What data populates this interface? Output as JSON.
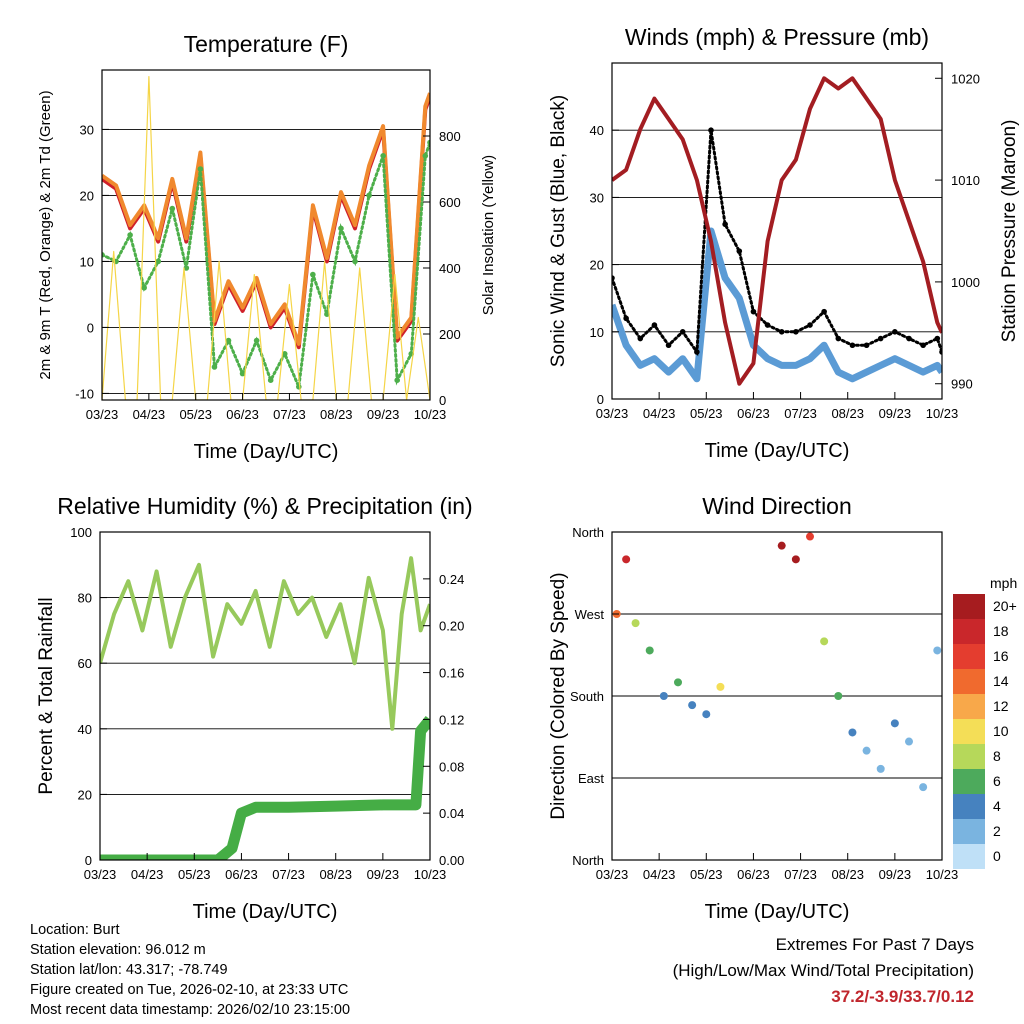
{
  "colors": {
    "temp2m": "#d0212a",
    "temp9m": "#f0892e",
    "dewpoint": "#4daf4a",
    "solar": "#f5d547",
    "wind": "#5b9bd5",
    "gust": "#000000",
    "pressure": "#a31d22",
    "rh": "#97c95c",
    "precip": "#45ad45",
    "extremes": "#c0262d"
  },
  "chart_data": [
    {
      "id": "temperature",
      "type": "line",
      "title": "Temperature (F)",
      "xlabel": "Time (Day/UTC)",
      "ylabel": "2m & 9m T (Red, Orange) & 2m Td (Green)",
      "y2label": "Solar Insolation (Yellow)",
      "xticks": [
        "03/23",
        "04/23",
        "05/23",
        "06/23",
        "07/23",
        "08/23",
        "09/23",
        "10/23"
      ],
      "ylim": [
        -11,
        39
      ],
      "yticks": [
        "-10",
        "0",
        "10",
        "20",
        "30"
      ],
      "y2lim": [
        0,
        1000
      ],
      "y2ticks": [
        "0",
        "200",
        "400",
        "600",
        "800"
      ],
      "gridlines": [
        -10,
        0,
        10,
        20,
        30
      ],
      "series": [
        {
          "name": "2m T",
          "kind": "line",
          "color": "#d0212a",
          "x": [
            0,
            0.3,
            0.6,
            0.9,
            1.2,
            1.5,
            1.8,
            2.1,
            2.4,
            2.7,
            3.0,
            3.3,
            3.6,
            3.9,
            4.2,
            4.5,
            4.8,
            5.1,
            5.4,
            5.7,
            6.0,
            6.3,
            6.6,
            6.9,
            7.0
          ],
          "values": [
            22.5,
            21,
            15,
            18,
            13,
            22,
            13,
            26,
            0.5,
            6.5,
            2.5,
            7,
            0,
            3,
            -3,
            18,
            10,
            20,
            15,
            24,
            30,
            -2,
            1,
            33,
            35
          ]
        },
        {
          "name": "9m T",
          "kind": "line",
          "color": "#f0892e",
          "x": [
            0,
            0.3,
            0.6,
            0.9,
            1.2,
            1.5,
            1.8,
            2.1,
            2.4,
            2.7,
            3.0,
            3.3,
            3.6,
            3.9,
            4.2,
            4.5,
            4.8,
            5.1,
            5.4,
            5.7,
            6.0,
            6.3,
            6.6,
            6.9,
            7.0
          ],
          "values": [
            23,
            21.5,
            15.5,
            18.5,
            13.5,
            22.5,
            13.5,
            26.5,
            1,
            7,
            3,
            7.5,
            0.5,
            3.5,
            -2.5,
            18.5,
            10.5,
            20.5,
            15.5,
            24.5,
            30.5,
            -1.5,
            1.5,
            33.5,
            35.5
          ]
        },
        {
          "name": "2m Td",
          "kind": "dots",
          "color": "#4daf4a",
          "x": [
            0,
            0.3,
            0.6,
            0.9,
            1.2,
            1.5,
            1.8,
            2.1,
            2.4,
            2.7,
            3.0,
            3.3,
            3.6,
            3.9,
            4.2,
            4.5,
            4.8,
            5.1,
            5.4,
            5.7,
            6.0,
            6.3,
            6.6,
            6.9,
            7.0
          ],
          "values": [
            11,
            10,
            14,
            6,
            10,
            18,
            9,
            24,
            -6,
            -2,
            -7,
            -2,
            -8,
            -4,
            -9,
            8,
            2,
            15,
            10,
            20,
            26,
            -8,
            -4,
            26,
            28
          ]
        },
        {
          "name": "Solar",
          "kind": "line",
          "axis": "y2",
          "color": "#f5d547",
          "x": [
            0,
            0.25,
            0.5,
            0.75,
            1.0,
            1.25,
            1.5,
            1.75,
            2.0,
            2.25,
            2.5,
            2.75,
            3.0,
            3.25,
            3.5,
            3.75,
            4.0,
            4.25,
            4.5,
            4.75,
            5.0,
            5.25,
            5.5,
            5.75,
            6.0,
            6.25,
            6.5,
            6.75,
            7.0
          ],
          "values": [
            0,
            450,
            0,
            0,
            980,
            0,
            0,
            400,
            0,
            0,
            420,
            0,
            0,
            380,
            0,
            0,
            350,
            0,
            0,
            420,
            0,
            0,
            400,
            0,
            0,
            380,
            0,
            250,
            0
          ]
        }
      ]
    },
    {
      "id": "winds",
      "type": "line",
      "title": "Winds (mph) & Pressure (mb)",
      "xlabel": "Time (Day/UTC)",
      "ylabel": "Sonic Wind & Gust (Blue, Black)",
      "y2label": "Station Pressure (Maroon)",
      "xticks": [
        "03/23",
        "04/23",
        "05/23",
        "06/23",
        "07/23",
        "08/23",
        "09/23",
        "10/23"
      ],
      "ylim": [
        0,
        50
      ],
      "yticks": [
        "0",
        "10",
        "20",
        "30",
        "40"
      ],
      "y2lim": [
        988.5,
        1021.5
      ],
      "y2ticks": [
        "990",
        "1000",
        "1010",
        "1020"
      ],
      "gridlines": [
        0,
        10,
        20,
        30,
        40
      ],
      "series": [
        {
          "name": "Sonic Wind",
          "kind": "band",
          "color": "#5b9bd5",
          "x": [
            0,
            0.3,
            0.6,
            0.9,
            1.2,
            1.5,
            1.8,
            2.1,
            2.4,
            2.7,
            3.0,
            3.3,
            3.6,
            3.9,
            4.2,
            4.5,
            4.8,
            5.1,
            5.4,
            5.7,
            6.0,
            6.3,
            6.6,
            6.9,
            7.0
          ],
          "values": [
            14,
            8,
            5,
            6,
            4,
            6,
            3,
            25,
            18,
            15,
            8,
            6,
            5,
            5,
            6,
            8,
            4,
            3,
            4,
            5,
            6,
            5,
            4,
            5,
            4
          ]
        },
        {
          "name": "Gust",
          "kind": "dots",
          "color": "#000000",
          "x": [
            0,
            0.3,
            0.6,
            0.9,
            1.2,
            1.5,
            1.8,
            2.1,
            2.4,
            2.7,
            3.0,
            3.3,
            3.6,
            3.9,
            4.2,
            4.5,
            4.8,
            5.1,
            5.4,
            5.7,
            6.0,
            6.3,
            6.6,
            6.9,
            7.0
          ],
          "values": [
            18,
            12,
            9,
            11,
            8,
            10,
            7,
            40,
            26,
            22,
            13,
            11,
            10,
            10,
            11,
            13,
            9,
            8,
            8,
            9,
            10,
            9,
            8,
            9,
            7
          ]
        },
        {
          "name": "Pressure",
          "kind": "line",
          "axis": "y2",
          "color": "#a31d22",
          "x": [
            0,
            0.3,
            0.6,
            0.9,
            1.2,
            1.5,
            1.8,
            2.1,
            2.4,
            2.7,
            3.0,
            3.3,
            3.6,
            3.9,
            4.2,
            4.5,
            4.8,
            5.1,
            5.4,
            5.7,
            6.0,
            6.3,
            6.6,
            6.9,
            7.0
          ],
          "values": [
            1010,
            1011,
            1015,
            1018,
            1016,
            1014,
            1010,
            1004,
            996,
            990,
            992,
            1004,
            1010,
            1012,
            1017,
            1020,
            1019,
            1020,
            1018,
            1016,
            1010,
            1006,
            1002,
            996,
            995
          ]
        }
      ]
    },
    {
      "id": "humidity",
      "type": "line",
      "title": "Relative Humidity (%) & Precipitation (in)",
      "xlabel": "Time (Day/UTC)",
      "ylabel": "Percent & Total Rainfall",
      "xticks": [
        "03/23",
        "04/23",
        "05/23",
        "06/23",
        "07/23",
        "08/23",
        "09/23",
        "10/23"
      ],
      "ylim": [
        0,
        100
      ],
      "yticks": [
        "0",
        "20",
        "40",
        "60",
        "80",
        "100"
      ],
      "y2lim": [
        0,
        0.28
      ],
      "y2ticks": [
        "0.00",
        "0.04",
        "0.08",
        "0.12",
        "0.16",
        "0.20",
        "0.24"
      ],
      "gridlines": [
        20,
        40,
        60,
        80
      ],
      "series": [
        {
          "name": "RH",
          "kind": "line",
          "color": "#97c95c",
          "x": [
            0,
            0.3,
            0.6,
            0.9,
            1.2,
            1.5,
            1.8,
            2.1,
            2.4,
            2.7,
            3.0,
            3.3,
            3.6,
            3.9,
            4.2,
            4.5,
            4.8,
            5.1,
            5.4,
            5.7,
            6.0,
            6.2,
            6.4,
            6.6,
            6.8,
            7.0
          ],
          "values": [
            60,
            75,
            85,
            70,
            88,
            65,
            80,
            90,
            62,
            78,
            72,
            82,
            65,
            85,
            75,
            80,
            68,
            78,
            60,
            86,
            70,
            40,
            75,
            92,
            70,
            78
          ]
        },
        {
          "name": "Precipitation",
          "kind": "thick",
          "axis": "y2",
          "color": "#45ad45",
          "x": [
            0,
            1.0,
            2.0,
            2.5,
            2.8,
            3.0,
            3.3,
            4.0,
            5.0,
            6.0,
            6.7,
            6.8,
            7.0
          ],
          "values": [
            0,
            0,
            0,
            0,
            0.01,
            0.04,
            0.045,
            0.045,
            0.046,
            0.047,
            0.047,
            0.11,
            0.12
          ]
        }
      ]
    },
    {
      "id": "direction",
      "type": "scatter",
      "title": "Wind Direction",
      "xlabel": "Time (Day/UTC)",
      "ylabel": "Direction (Colored By Speed)",
      "xticks": [
        "03/23",
        "04/23",
        "05/23",
        "06/23",
        "07/23",
        "08/23",
        "09/23",
        "10/23"
      ],
      "ylim": [
        0,
        360
      ],
      "yticks": [
        {
          "v": 0,
          "label": "North"
        },
        {
          "v": 90,
          "label": "East"
        },
        {
          "v": 180,
          "label": "South"
        },
        {
          "v": 270,
          "label": "West"
        },
        {
          "v": 360,
          "label": "North"
        }
      ],
      "gridlines": [
        90,
        180,
        270
      ],
      "legend": {
        "title": "mph",
        "labels": [
          "20+",
          "18",
          "16",
          "14",
          "12",
          "10",
          "8",
          "6",
          "4",
          "2",
          "0"
        ],
        "colors": [
          "#a61c1f",
          "#c9272b",
          "#e43d2f",
          "#f06a2e",
          "#f8a84a",
          "#f4de57",
          "#b6d85a",
          "#4daa5c",
          "#4682bf",
          "#7ab4e0",
          "#bfe0f7"
        ]
      },
      "points": [
        {
          "x": 0.1,
          "y": 270,
          "s": 14
        },
        {
          "x": 0.3,
          "y": 330,
          "s": 18
        },
        {
          "x": 0.5,
          "y": 260,
          "s": 8
        },
        {
          "x": 0.8,
          "y": 230,
          "s": 6
        },
        {
          "x": 1.1,
          "y": 180,
          "s": 4
        },
        {
          "x": 1.4,
          "y": 195,
          "s": 5
        },
        {
          "x": 1.7,
          "y": 170,
          "s": 4
        },
        {
          "x": 2.0,
          "y": 160,
          "s": 4
        },
        {
          "x": 2.3,
          "y": 190,
          "s": 10
        },
        {
          "x": 3.6,
          "y": 345,
          "s": 20
        },
        {
          "x": 3.9,
          "y": 330,
          "s": 20
        },
        {
          "x": 4.2,
          "y": 355,
          "s": 16
        },
        {
          "x": 4.5,
          "y": 240,
          "s": 8
        },
        {
          "x": 4.8,
          "y": 180,
          "s": 6
        },
        {
          "x": 5.1,
          "y": 140,
          "s": 3
        },
        {
          "x": 5.4,
          "y": 120,
          "s": 2
        },
        {
          "x": 5.7,
          "y": 100,
          "s": 2
        },
        {
          "x": 6.0,
          "y": 150,
          "s": 3
        },
        {
          "x": 6.3,
          "y": 130,
          "s": 2
        },
        {
          "x": 6.6,
          "y": 80,
          "s": 1
        },
        {
          "x": 6.9,
          "y": 230,
          "s": 2
        }
      ]
    }
  ],
  "info": {
    "location": "Location: Burt",
    "elevation": "Station elevation: 96.012 m",
    "latlon": "Station lat/lon: 43.317; -78.749",
    "created": "Figure created on Tue, 2026-02-10, at 23:33 UTC",
    "recent": "Most recent data timestamp: 2026/02/10 23:15:00"
  },
  "extremes": {
    "line1": "Extremes For Past 7 Days",
    "line2": "(High/Low/Max Wind/Total Precipitation)",
    "values": "37.2/-3.9/33.7/0.12"
  }
}
